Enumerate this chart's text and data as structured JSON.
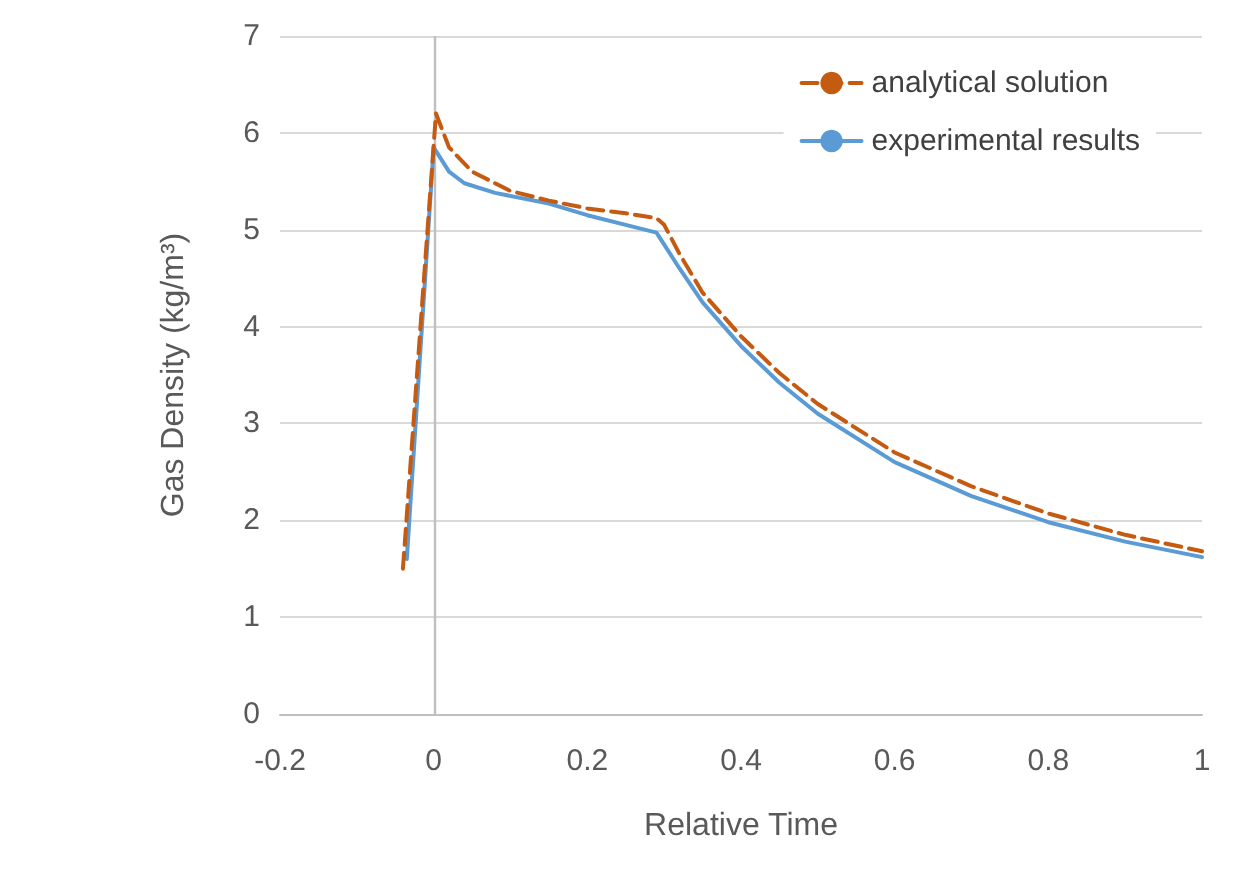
{
  "chart_data": {
    "type": "line",
    "xlabel": "Relative Time",
    "ylabel": "Gas Density (kg/m³)",
    "xlim": [
      -0.2,
      1
    ],
    "xticks": [
      -0.2,
      0,
      0.2,
      0.4,
      0.6,
      0.8,
      1
    ],
    "ylim": [
      0,
      7
    ],
    "yticks": [
      0,
      1,
      2,
      3,
      4,
      5,
      6,
      7
    ],
    "grid": "y",
    "legend": "top right",
    "marker": "none",
    "ref_lines": [
      {
        "axis": "x",
        "value": 0,
        "color": "#bfbfbf"
      }
    ],
    "series": [
      {
        "name": "analytical solution",
        "color": "#c55a11",
        "line_style": "dashed",
        "x": [
          -0.04,
          0.003,
          0.02,
          0.05,
          0.1,
          0.15,
          0.2,
          0.25,
          0.29,
          0.3,
          0.32,
          0.35,
          0.4,
          0.45,
          0.5,
          0.6,
          0.7,
          0.8,
          0.9,
          1
        ],
        "values": [
          1.5,
          6.2,
          5.85,
          5.6,
          5.4,
          5.3,
          5.22,
          5.17,
          5.12,
          5.05,
          4.75,
          4.35,
          3.9,
          3.52,
          3.2,
          2.7,
          2.35,
          2.07,
          1.85,
          1.68
        ]
      },
      {
        "name": "experimental results",
        "color": "#5b9bd5",
        "line_style": "solid",
        "x": [
          -0.035,
          0,
          0.02,
          0.04,
          0.08,
          0.15,
          0.2,
          0.25,
          0.29,
          0.32,
          0.35,
          0.4,
          0.45,
          0.5,
          0.6,
          0.7,
          0.8,
          0.9,
          1
        ],
        "values": [
          1.6,
          5.85,
          5.6,
          5.48,
          5.38,
          5.27,
          5.15,
          5.05,
          4.97,
          4.6,
          4.25,
          3.8,
          3.42,
          3.1,
          2.6,
          2.25,
          1.98,
          1.78,
          1.62
        ]
      }
    ]
  }
}
